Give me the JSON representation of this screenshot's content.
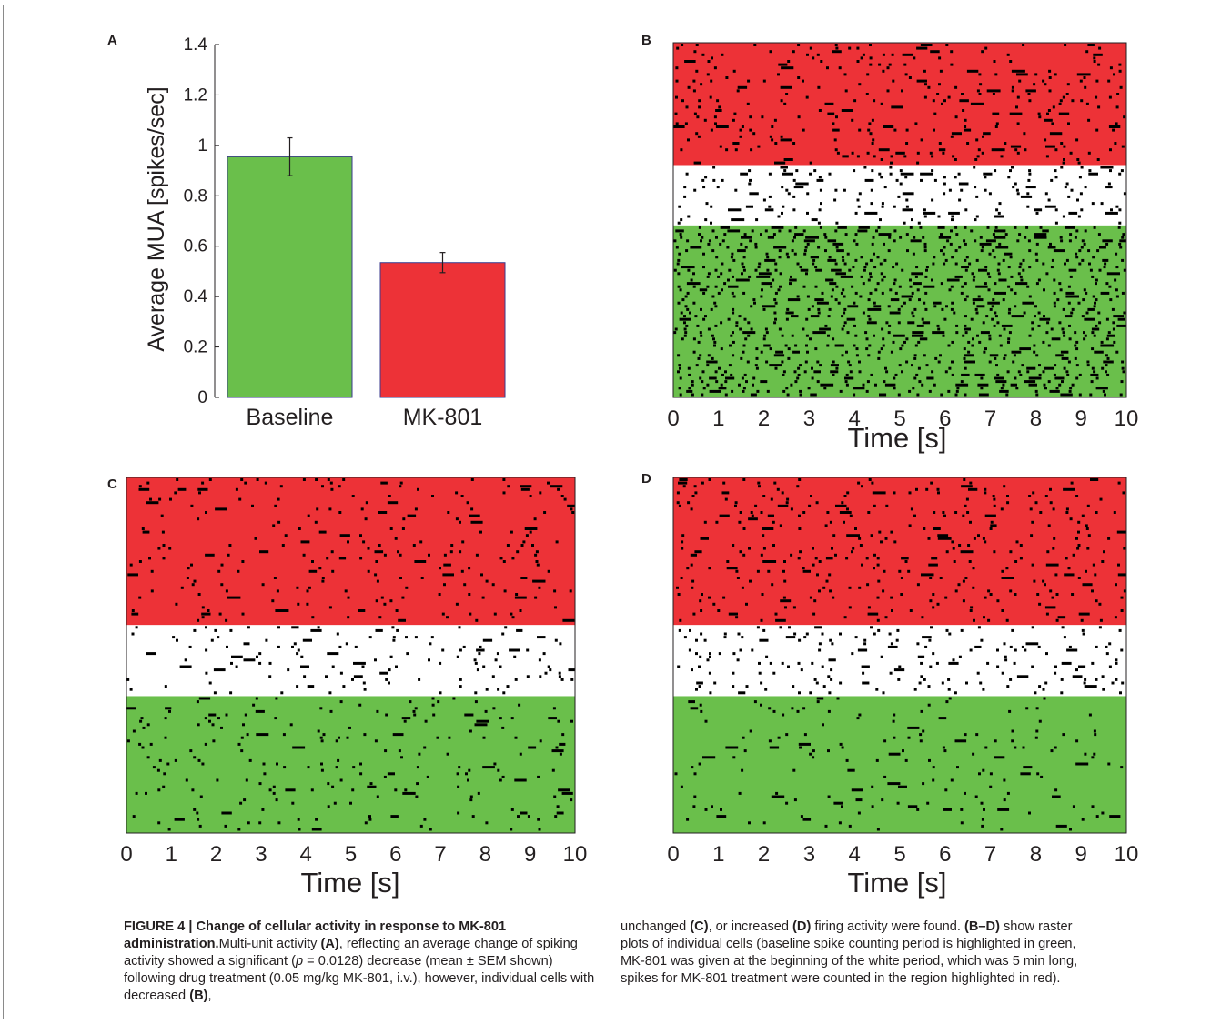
{
  "panel_labels": [
    "A",
    "B",
    "C",
    "D"
  ],
  "caption": {
    "figure_label": "FIGURE 4 | ",
    "title": "Change of cellular activity in response to MK-801 administration.",
    "left_segments": [
      {
        "t": "Multi-unit activity ",
        "s": ""
      },
      {
        "t": "(A)",
        "s": "b"
      },
      {
        "t": ", reflecting an average change of spiking activity showed a significant (",
        "s": ""
      },
      {
        "t": "p",
        "s": "i"
      },
      {
        "t": " = 0.0128) decrease (mean ± SEM shown) following drug treatment (0.05 mg/kg MK-801, i.v.), however, individual cells with decreased ",
        "s": ""
      },
      {
        "t": "(B)",
        "s": "b"
      },
      {
        "t": ",",
        "s": ""
      }
    ],
    "right_segments": [
      {
        "t": "unchanged ",
        "s": ""
      },
      {
        "t": "(C)",
        "s": "b"
      },
      {
        "t": ", or increased ",
        "s": ""
      },
      {
        "t": "(D)",
        "s": "b"
      },
      {
        "t": " firing activity were found. ",
        "s": ""
      },
      {
        "t": "(B–D)",
        "s": "b"
      },
      {
        "t": " show raster plots of individual cells (baseline spike counting period is highlighted in green, MK-801 was given at the beginning of the white period, which was 5 min long, spikes for MK-801 treatment were counted in the region highlighted in red).",
        "s": ""
      }
    ]
  },
  "colors": {
    "baseline_green": "#6abf4b",
    "mk801_red": "#ed3237",
    "spike_black": "#000000",
    "bar_edge": "#3a3a8c"
  },
  "chart_data": [
    {
      "panel": "A",
      "type": "bar",
      "categories": [
        "Baseline",
        "MK-801"
      ],
      "values": [
        0.955,
        0.535
      ],
      "errors": [
        0.075,
        0.04
      ],
      "bar_colors": [
        "#6abf4b",
        "#ed3237"
      ],
      "ylabel": "Average MUA [spikes/sec]",
      "xlabel": "",
      "ylim": [
        0,
        1.4
      ],
      "yticks": [
        0,
        0.2,
        0.4,
        0.6,
        0.8,
        1,
        1.2,
        1.4
      ],
      "ytick_labels": [
        "0",
        "0.2",
        "0.4",
        "0.6",
        "0.8",
        "1",
        "1.2",
        "1.4"
      ]
    },
    {
      "panel": "B",
      "type": "scatter",
      "description_kind": "raster",
      "xlabel": "Time [s]",
      "xlim": [
        0,
        10
      ],
      "xticks": [
        0,
        1,
        2,
        3,
        4,
        5,
        6,
        7,
        8,
        9,
        10
      ],
      "bands": [
        {
          "color": "#ed3237",
          "from": 0,
          "to": 0.345
        },
        {
          "color": "#ffffff",
          "from": 0.345,
          "to": 0.515
        },
        {
          "color": "#6abf4b",
          "from": 0.515,
          "to": 1
        }
      ],
      "band_spike_density": [
        0.16,
        0.18,
        0.42
      ]
    },
    {
      "panel": "C",
      "type": "scatter",
      "description_kind": "raster",
      "xlabel": "Time [s]",
      "xlim": [
        0,
        10
      ],
      "xticks": [
        0,
        1,
        2,
        3,
        4,
        5,
        6,
        7,
        8,
        9,
        10
      ],
      "bands": [
        {
          "color": "#ed3237",
          "from": 0,
          "to": 0.415
        },
        {
          "color": "#ffffff",
          "from": 0.415,
          "to": 0.615
        },
        {
          "color": "#6abf4b",
          "from": 0.615,
          "to": 1
        }
      ],
      "band_spike_density": [
        0.09,
        0.1,
        0.09
      ]
    },
    {
      "panel": "D",
      "type": "scatter",
      "description_kind": "raster",
      "xlabel": "Time [s]",
      "xlim": [
        0,
        10
      ],
      "xticks": [
        0,
        1,
        2,
        3,
        4,
        5,
        6,
        7,
        8,
        9,
        10
      ],
      "bands": [
        {
          "color": "#ed3237",
          "from": 0,
          "to": 0.415
        },
        {
          "color": "#ffffff",
          "from": 0.415,
          "to": 0.615
        },
        {
          "color": "#6abf4b",
          "from": 0.615,
          "to": 1
        }
      ],
      "band_spike_density": [
        0.13,
        0.14,
        0.06
      ]
    }
  ]
}
